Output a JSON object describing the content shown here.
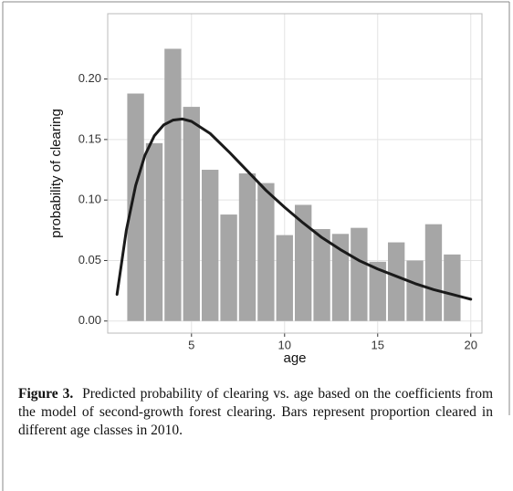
{
  "chart_data": {
    "type": "bar",
    "x_label": "age",
    "y_label": "probability of clearing",
    "xlim": [
      0.5,
      20.6
    ],
    "ylim": [
      -0.01,
      0.254
    ],
    "xticks": [
      5,
      10,
      15,
      20
    ],
    "yticks": [
      {
        "value": 0,
        "label": "0.00"
      },
      {
        "value": 0.05,
        "label": "0.05"
      },
      {
        "value": 0.1,
        "label": "0.10"
      },
      {
        "value": 0.15,
        "label": "0.15"
      },
      {
        "value": 0.2,
        "label": "0.20"
      }
    ],
    "grid": true,
    "series": [
      {
        "type": "bar",
        "color": "#a6a6a6",
        "x": [
          2,
          3,
          4,
          5,
          6,
          7,
          8,
          9,
          10,
          11,
          12,
          13,
          14,
          15,
          16,
          17,
          18,
          19
        ],
        "values": [
          0.188,
          0.147,
          0.225,
          0.177,
          0.125,
          0.088,
          0.122,
          0.114,
          0.071,
          0.096,
          0.076,
          0.072,
          0.077,
          0.049,
          0.065,
          0.05,
          0.08,
          0.055
        ]
      },
      {
        "type": "line",
        "color": "#1a1a1a",
        "x": [
          1,
          1.5,
          2,
          2.5,
          3,
          3.5,
          4,
          4.5,
          5,
          6,
          7,
          8,
          9,
          10,
          11,
          12,
          13,
          14,
          15,
          16,
          17,
          18,
          19,
          20
        ],
        "values": [
          0.022,
          0.075,
          0.112,
          0.137,
          0.153,
          0.162,
          0.166,
          0.167,
          0.165,
          0.155,
          0.14,
          0.124,
          0.108,
          0.094,
          0.081,
          0.069,
          0.059,
          0.05,
          0.043,
          0.037,
          0.031,
          0.026,
          0.022,
          0.018
        ]
      }
    ]
  },
  "caption": {
    "label": "Figure 3.",
    "text": "Predicted probability of clearing vs. age based on the coefficients from the model of second-growth forest clearing. Bars represent proportion cleared in different age classes in 2010."
  }
}
